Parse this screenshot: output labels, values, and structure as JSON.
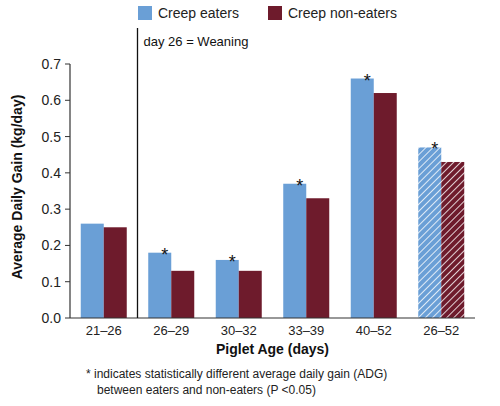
{
  "chart_data": {
    "type": "bar",
    "x_label": "Piglet Age (days)",
    "y_label": "Average Daily Gain (kg/day)",
    "categories": [
      "21–26",
      "26–29",
      "30–32",
      "33–39",
      "40–52",
      "26–52"
    ],
    "series": [
      {
        "name": "Creep eaters",
        "color": "#6a9fd6",
        "values": [
          0.26,
          0.18,
          0.16,
          0.37,
          0.66,
          0.47
        ]
      },
      {
        "name": "Creep non-eaters",
        "color": "#6e1b2c",
        "values": [
          0.25,
          0.13,
          0.13,
          0.33,
          0.62,
          0.43
        ]
      }
    ],
    "ylim": [
      0,
      0.7
    ],
    "yticks": [
      {
        "value": 0,
        "label": "0.0"
      },
      0.1,
      0.2,
      0.3,
      0.4,
      0.5,
      0.6,
      0.7
    ],
    "grid": false,
    "legend": "top",
    "weaning_marker": {
      "after_category": "21–26",
      "label": "day 26 = Weaning"
    },
    "annotations": [
      {
        "category": "26–29",
        "series": "Creep eaters",
        "text": "*"
      },
      {
        "category": "30–32",
        "series": "Creep eaters",
        "text": "*"
      },
      {
        "category": "33–39",
        "series": "Creep eaters",
        "text": "*"
      },
      {
        "category": "40–52",
        "series": "Creep eaters",
        "text": "*"
      },
      {
        "category": "26–52",
        "series": "Creep eaters",
        "text": "*"
      }
    ],
    "footnote": [
      "* indicates statistically different average daily gain (ADG)",
      "between eaters and non-eaters (P <0.05)"
    ]
  }
}
